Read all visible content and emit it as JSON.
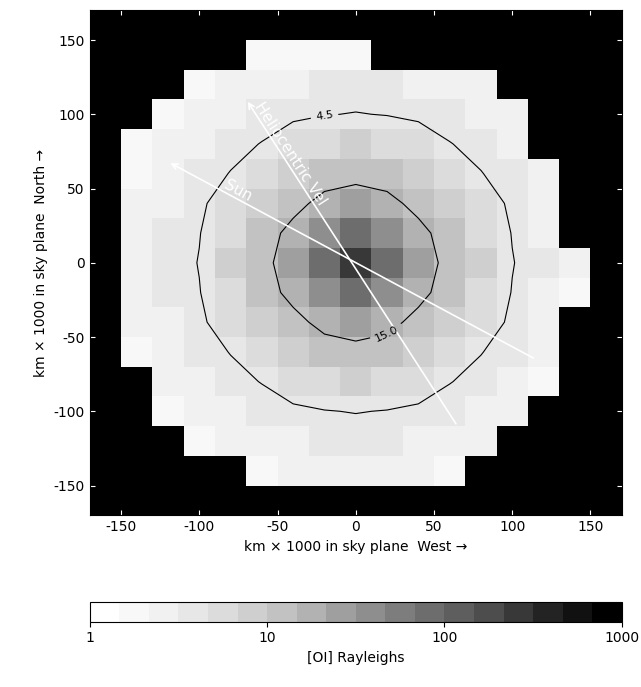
{
  "chart_data": {
    "type": "heatmap",
    "xlabel": "km × 1000 in sky plane  West →",
    "ylabel": "km × 1000 in sky plane  North →",
    "xlim": [
      -170,
      170
    ],
    "ylim": [
      -170,
      170
    ],
    "xticks": [
      -150,
      -100,
      -50,
      0,
      50,
      100,
      150
    ],
    "yticks": [
      -150,
      -100,
      -50,
      0,
      50,
      100,
      150
    ],
    "x": [
      -160,
      -140,
      -120,
      -100,
      -80,
      -60,
      -40,
      -20,
      0,
      20,
      40,
      60,
      80,
      100,
      120,
      140,
      160
    ],
    "y": [
      160,
      140,
      120,
      100,
      80,
      60,
      40,
      20,
      0,
      -20,
      -40,
      -60,
      -80,
      -100,
      -120,
      -140,
      -160
    ],
    "cells": [
      [
        null,
        null,
        null,
        null,
        null,
        null,
        null,
        null,
        null,
        null,
        null,
        null,
        null,
        null,
        null,
        null,
        null
      ],
      [
        null,
        null,
        null,
        null,
        null,
        1.8,
        2.0,
        2.1,
        2.0,
        null,
        null,
        null,
        null,
        null,
        null,
        null,
        null
      ],
      [
        null,
        null,
        null,
        2.0,
        2.3,
        2.7,
        3.0,
        3.2,
        3.3,
        3.2,
        3.0,
        2.7,
        2.2,
        null,
        null,
        null,
        null
      ],
      [
        null,
        null,
        1.9,
        2.4,
        2.9,
        3.4,
        4.0,
        4.4,
        4.6,
        4.4,
        4.0,
        3.4,
        2.9,
        2.2,
        null,
        null,
        null
      ],
      [
        null,
        1.8,
        2.3,
        2.9,
        3.7,
        4.6,
        6.0,
        6.7,
        7.0,
        6.7,
        6.0,
        4.6,
        3.7,
        2.8,
        null,
        null,
        null
      ],
      [
        null,
        2.0,
        2.7,
        3.4,
        4.6,
        6.5,
        8,
        10.5,
        11,
        10.5,
        8,
        6.5,
        4.6,
        3.4,
        2.5,
        null,
        null
      ],
      [
        null,
        2.2,
        3.0,
        4.0,
        6.0,
        8,
        12,
        18,
        22,
        18,
        12,
        8,
        6,
        4,
        2.8,
        null,
        null
      ],
      [
        null,
        2.4,
        3.2,
        4.4,
        6.7,
        10.5,
        18,
        40,
        70,
        40,
        18,
        10.5,
        6.7,
        4.4,
        3.0,
        null,
        null
      ],
      [
        null,
        2.4,
        3.3,
        4.6,
        7,
        11,
        22,
        70,
        300,
        70,
        22,
        11,
        7,
        4.6,
        3.3,
        2.2,
        null
      ],
      [
        null,
        2.4,
        3.2,
        4.4,
        6.7,
        10.5,
        18,
        40,
        70,
        40,
        18,
        10.5,
        6.7,
        4.4,
        3.0,
        2.0,
        null
      ],
      [
        null,
        2.2,
        3.0,
        4.0,
        6.0,
        8,
        12,
        18,
        22,
        18,
        12,
        8,
        6,
        4,
        2.8,
        null,
        null
      ],
      [
        null,
        1.9,
        2.7,
        3.4,
        4.6,
        6.5,
        8,
        10.5,
        11,
        10.5,
        8,
        6.5,
        4.6,
        3.4,
        2.5,
        null,
        null
      ],
      [
        null,
        null,
        2.3,
        2.9,
        3.7,
        4.6,
        6.0,
        6.7,
        7.0,
        6.7,
        6.0,
        4.6,
        3.7,
        2.8,
        2.0,
        null,
        null
      ],
      [
        null,
        null,
        1.9,
        2.4,
        2.9,
        3.4,
        4.0,
        4.4,
        4.6,
        4.4,
        4.0,
        3.4,
        2.9,
        2.4,
        null,
        null,
        null
      ],
      [
        null,
        null,
        null,
        2.0,
        2.3,
        2.7,
        3.0,
        3.2,
        3.3,
        3.2,
        3.0,
        2.7,
        2.3,
        null,
        null,
        null,
        null
      ],
      [
        null,
        null,
        null,
        null,
        null,
        2.0,
        2.2,
        2.4,
        2.4,
        2.4,
        2.2,
        2.0,
        null,
        null,
        null,
        null,
        null
      ],
      [
        null,
        null,
        null,
        null,
        null,
        null,
        null,
        null,
        null,
        null,
        null,
        null,
        null,
        null,
        null,
        null,
        null
      ]
    ],
    "contours": [
      {
        "value": 4.5,
        "label": "4.5"
      },
      {
        "value": 15,
        "label": "15.0"
      }
    ],
    "colorbar": {
      "label": "[OI] Rayleighs",
      "log": true,
      "range": [
        1,
        1000
      ],
      "ticks": [
        1,
        10,
        100,
        1000
      ]
    },
    "annotations": [
      {
        "text": "Sun",
        "from": [
          115,
          -65
        ],
        "to": [
          -120,
          68
        ]
      },
      {
        "text": "Heliocentric Vel",
        "from": [
          65,
          -110
        ],
        "to": [
          -70,
          110
        ]
      }
    ]
  }
}
